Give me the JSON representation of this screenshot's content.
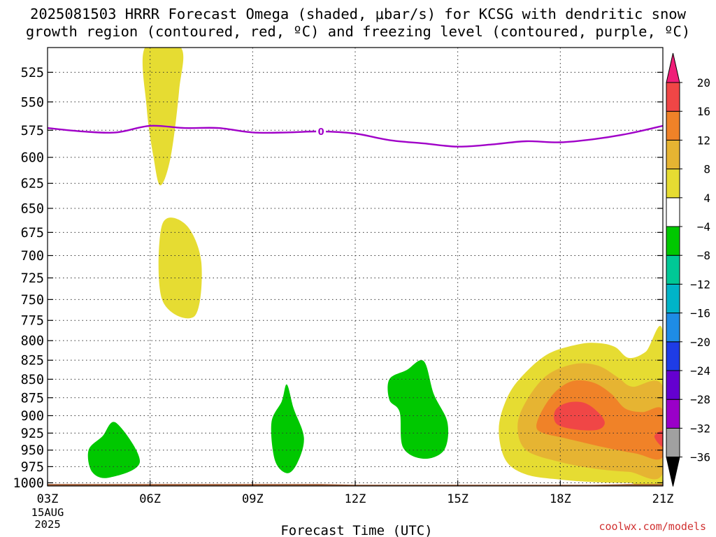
{
  "title_line1": "2025081503 HRRR Forecast Omega (shaded, μbar/s) for KCSG with dendritic snow",
  "title_line2": "growth region (contoured, red, ºC) and freezing level (contoured, purple, ºC)",
  "credit": "coolwx.com/models",
  "chart_data": {
    "type": "heatmap",
    "xlabel": "Forecast Time (UTC)",
    "ylabel": "",
    "x_ticks": [
      {
        "hour": 3,
        "label": "03Z",
        "sub": [
          "15AUG",
          "2025"
        ]
      },
      {
        "hour": 6,
        "label": "06Z"
      },
      {
        "hour": 9,
        "label": "09Z"
      },
      {
        "hour": 12,
        "label": "12Z"
      },
      {
        "hour": 15,
        "label": "15Z"
      },
      {
        "hour": 18,
        "label": "18Z"
      },
      {
        "hour": 21,
        "label": "21Z"
      }
    ],
    "xlim": [
      3,
      21
    ],
    "y_scale": "log-pressure",
    "ylim_hpa": [
      1005,
      505
    ],
    "y_ticks": [
      525,
      550,
      575,
      600,
      625,
      650,
      675,
      700,
      725,
      750,
      775,
      800,
      825,
      850,
      875,
      900,
      925,
      950,
      975,
      1000
    ],
    "grid": "dotted",
    "colorbar": {
      "levels": [
        -36,
        -32,
        -28,
        -24,
        -20,
        -16,
        -12,
        -8,
        -4,
        4,
        8,
        12,
        16,
        20
      ],
      "colors": [
        "#000000",
        "#a0a0a0",
        "#9a00c8",
        "#6400d0",
        "#1e3ce6",
        "#1e8ce6",
        "#00b4c8",
        "#00c896",
        "#00c800",
        "#ffffff",
        "#e6dc32",
        "#e6b432",
        "#f08228",
        "#f04646",
        "#f01e78"
      ]
    },
    "freezing_level": {
      "label": "0",
      "color": "#a000c8",
      "points": [
        [
          3,
          573
        ],
        [
          4,
          576
        ],
        [
          5,
          577
        ],
        [
          6,
          571
        ],
        [
          7,
          573
        ],
        [
          8,
          573
        ],
        [
          9,
          577
        ],
        [
          10,
          577
        ],
        [
          11,
          576
        ],
        [
          12,
          578
        ],
        [
          13,
          584
        ],
        [
          14,
          587
        ],
        [
          15,
          590
        ],
        [
          16,
          588
        ],
        [
          17,
          585
        ],
        [
          18,
          586
        ],
        [
          19,
          583
        ],
        [
          20,
          578
        ],
        [
          21,
          571
        ]
      ]
    },
    "shaded_regions": [
      {
        "level": 4,
        "color": "#e6dc32",
        "points": [
          [
            5.85,
            505
          ],
          [
            6.9,
            505
          ],
          [
            6.85,
            540
          ],
          [
            6.6,
            600
          ],
          [
            6.3,
            627
          ],
          [
            6.1,
            600
          ],
          [
            5.9,
            555
          ]
        ]
      },
      {
        "level": 4,
        "color": "#e6dc32",
        "points": [
          [
            6.35,
            667
          ],
          [
            7.05,
            667
          ],
          [
            7.5,
            708
          ],
          [
            7.3,
            770
          ],
          [
            6.35,
            750
          ]
        ]
      },
      {
        "level": -4,
        "color": "#00c800",
        "points": [
          [
            4.2,
            950
          ],
          [
            4.6,
            930
          ],
          [
            5.0,
            910
          ],
          [
            5.7,
            968
          ],
          [
            4.8,
            992
          ],
          [
            4.3,
            983
          ]
        ]
      },
      {
        "level": -4,
        "color": "#00c800",
        "points": [
          [
            9.55,
            910
          ],
          [
            9.85,
            880
          ],
          [
            10.0,
            857
          ],
          [
            10.2,
            890
          ],
          [
            10.5,
            932
          ],
          [
            10.3,
            970
          ],
          [
            10.0,
            985
          ],
          [
            9.65,
            965
          ]
        ]
      },
      {
        "level": -4,
        "color": "#00c800",
        "points": [
          [
            13.0,
            850
          ],
          [
            13.5,
            838
          ],
          [
            14.0,
            826
          ],
          [
            14.3,
            870
          ],
          [
            14.7,
            910
          ],
          [
            14.6,
            950
          ],
          [
            14.0,
            963
          ],
          [
            13.4,
            946
          ],
          [
            13.3,
            895
          ],
          [
            13.0,
            878
          ]
        ]
      },
      {
        "level": 4,
        "color": "#e6dc32",
        "points": [
          [
            16.2,
            920
          ],
          [
            16.4,
            880
          ],
          [
            16.8,
            850
          ],
          [
            17.6,
            818
          ],
          [
            18.5,
            805
          ],
          [
            19.1,
            803
          ],
          [
            19.6,
            808
          ],
          [
            20.0,
            822
          ],
          [
            20.5,
            814
          ],
          [
            21.0,
            790
          ],
          [
            21.0,
            998
          ],
          [
            20.0,
            1000
          ],
          [
            19.0,
            999
          ],
          [
            18.0,
            995
          ],
          [
            17.0,
            987
          ],
          [
            16.4,
            965
          ]
        ]
      },
      {
        "level": 8,
        "color": "#e6b432",
        "points": [
          [
            16.75,
            915
          ],
          [
            17.0,
            880
          ],
          [
            17.6,
            845
          ],
          [
            18.4,
            830
          ],
          [
            19.1,
            832
          ],
          [
            19.7,
            848
          ],
          [
            20.1,
            860
          ],
          [
            21.0,
            860
          ],
          [
            21.0,
            985
          ],
          [
            20.0,
            983
          ],
          [
            19.0,
            978
          ],
          [
            18.0,
            968
          ],
          [
            17.0,
            950
          ]
        ]
      },
      {
        "level": 12,
        "color": "#f08228",
        "points": [
          [
            17.3,
            915
          ],
          [
            17.5,
            890
          ],
          [
            17.9,
            865
          ],
          [
            18.4,
            852
          ],
          [
            19.0,
            855
          ],
          [
            19.5,
            870
          ],
          [
            19.9,
            890
          ],
          [
            20.4,
            895
          ],
          [
            21.0,
            892
          ],
          [
            21.0,
            960
          ],
          [
            20.2,
            955
          ],
          [
            19.2,
            945
          ],
          [
            18.1,
            932
          ],
          [
            17.5,
            925
          ]
        ]
      },
      {
        "level": 16,
        "color": "#f04646",
        "points": [
          [
            17.85,
            893
          ],
          [
            18.2,
            882
          ],
          [
            18.7,
            882
          ],
          [
            19.1,
            895
          ],
          [
            19.3,
            910
          ],
          [
            19.1,
            920
          ],
          [
            18.5,
            920
          ],
          [
            17.9,
            912
          ]
        ]
      },
      {
        "level": 16,
        "color": "#f04646",
        "points": [
          [
            21.0,
            922
          ],
          [
            20.75,
            930
          ],
          [
            21.0,
            945
          ]
        ]
      }
    ],
    "ground": {
      "color": "#a05a32",
      "points": [
        [
          3,
          1002
        ],
        [
          5,
          1002
        ],
        [
          7,
          1002
        ],
        [
          9,
          1002
        ],
        [
          11,
          1002
        ],
        [
          12,
          1003
        ],
        [
          14,
          1003
        ],
        [
          15,
          1003
        ],
        [
          17,
          1003
        ],
        [
          18,
          1003
        ],
        [
          19,
          1003
        ],
        [
          20,
          1002
        ],
        [
          21,
          1002
        ]
      ]
    }
  }
}
